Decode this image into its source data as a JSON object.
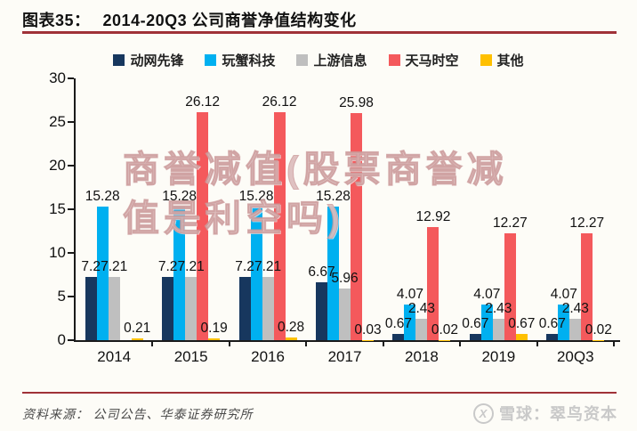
{
  "header": {
    "figure_label": "图表35：",
    "title": "2014-20Q3 公司商誉净值结构变化"
  },
  "watermark": {
    "line1": "商誉减值(股票商誉减",
    "line2": "值是利空吗)"
  },
  "footer": {
    "source": "资料来源： 公司公告、华泰证券研究所",
    "brand": "雪球：翠鸟资本",
    "brand_icon_glyph": "X"
  },
  "colors": {
    "accent_rule": "#a03238",
    "axis": "#1a1a1a",
    "watermark_pink": "#d6afaf",
    "brand_gray": "#c9c9c9"
  },
  "chart_data": {
    "type": "bar",
    "title": "2014-20Q3 公司商誉净值结构变化",
    "categories": [
      "2014",
      "2015",
      "2016",
      "2017",
      "2018",
      "2019",
      "20Q3"
    ],
    "series": [
      {
        "name": "动网先锋",
        "color": "#17375e",
        "values": [
          7.2,
          7.2,
          7.2,
          6.67,
          0.67,
          0.67,
          0.67
        ]
      },
      {
        "name": "玩蟹科技",
        "color": "#00b0f0",
        "values": [
          15.28,
          15.28,
          15.28,
          15.28,
          4.07,
          4.07,
          4.07
        ]
      },
      {
        "name": "上游信息",
        "color": "#bfbfbf",
        "values": [
          7.21,
          7.21,
          7.21,
          5.96,
          2.43,
          2.43,
          2.43
        ]
      },
      {
        "name": "天马时空",
        "color": "#f4595c",
        "values": [
          null,
          26.12,
          26.12,
          25.98,
          12.92,
          12.27,
          12.27
        ]
      },
      {
        "name": "其他",
        "color": "#ffc000",
        "values": [
          0.21,
          0.19,
          0.28,
          0.03,
          0.02,
          0.67,
          0.02
        ]
      }
    ],
    "xlabel": "",
    "ylabel": "",
    "ylim": [
      0,
      30
    ],
    "yticks": [
      0,
      5,
      10,
      15,
      20,
      25,
      30
    ],
    "grid": false,
    "legend_position": "top",
    "bar_value_labels": true
  }
}
